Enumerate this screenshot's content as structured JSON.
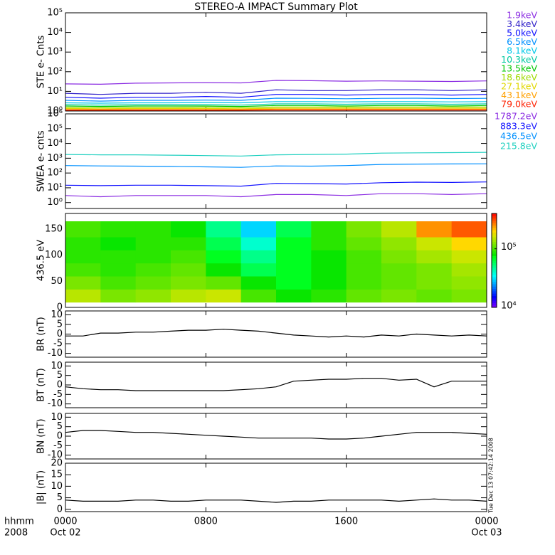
{
  "chart_data": [
    {
      "type": "line",
      "title": "STEREO-A IMPACT Summary Plot",
      "ylabel": "STE e- Cnts",
      "log": true,
      "xlim": [
        0,
        24
      ],
      "ylim": [
        1,
        100000
      ],
      "yticks": [
        {
          "value": 1,
          "label": "10⁰"
        },
        {
          "value": 10,
          "label": "10¹"
        },
        {
          "value": 100,
          "label": "10²"
        },
        {
          "value": 1000,
          "label": "10³"
        },
        {
          "value": 10000,
          "label": "10⁴"
        },
        {
          "value": 100000,
          "label": "10⁵"
        }
      ],
      "x": [
        0,
        2,
        4,
        6,
        8,
        10,
        12,
        14,
        16,
        18,
        20,
        22,
        24
      ],
      "series": [
        {
          "name": "1.9keV",
          "color": "#8a2be2",
          "values": [
            24,
            23,
            26,
            27,
            28,
            27,
            36,
            35,
            33,
            34,
            33,
            32,
            34
          ]
        },
        {
          "name": "3.4keV",
          "color": "#3020c8",
          "values": [
            8,
            7,
            8,
            8,
            9,
            8,
            12,
            11,
            11,
            12,
            12,
            11,
            12
          ]
        },
        {
          "name": "5.0keV",
          "color": "#1010ff",
          "values": [
            5,
            4.5,
            5,
            5,
            5.5,
            5,
            7,
            7,
            6.5,
            7,
            7,
            6.5,
            7
          ]
        },
        {
          "name": "6.5keV",
          "color": "#0090ff",
          "values": [
            3.5,
            3.2,
            3.5,
            3.5,
            3.6,
            3.5,
            4.5,
            4.4,
            4.2,
            4.4,
            4.5,
            4.3,
            4.4
          ]
        },
        {
          "name": "8.1keV",
          "color": "#00c8e8",
          "values": [
            2.6,
            2.5,
            2.6,
            2.6,
            2.7,
            2.6,
            3,
            3,
            2.9,
            3,
            3,
            2.9,
            3
          ]
        },
        {
          "name": "10.3keV",
          "color": "#00c8a0",
          "values": [
            2.1,
            2,
            2.1,
            2.1,
            2.1,
            2,
            2.3,
            2.3,
            2.2,
            2.3,
            2.3,
            2.2,
            2.3
          ]
        },
        {
          "name": "13.5keV",
          "color": "#00c800",
          "values": [
            1.8,
            1.7,
            1.8,
            1.8,
            1.8,
            1.7,
            1.9,
            1.9,
            1.8,
            1.9,
            1.9,
            1.8,
            1.9
          ]
        },
        {
          "name": "18.6keV",
          "color": "#a0dc00",
          "values": [
            1.5,
            1.5,
            1.5,
            1.5,
            1.6,
            1.5,
            1.6,
            1.6,
            1.6,
            1.6,
            1.6,
            1.6,
            1.6
          ]
        },
        {
          "name": "27.1keV",
          "color": "#e0d800",
          "values": [
            1.35,
            1.3,
            1.35,
            1.35,
            1.35,
            1.3,
            1.4,
            1.4,
            1.4,
            1.4,
            1.4,
            1.4,
            1.4
          ]
        },
        {
          "name": "43.1keV",
          "color": "#ffa000",
          "values": [
            1.2,
            1.2,
            1.2,
            1.2,
            1.2,
            1.2,
            1.25,
            1.25,
            1.25,
            1.25,
            1.25,
            1.25,
            1.25
          ]
        },
        {
          "name": "79.0keV",
          "color": "#ff2000",
          "values": [
            1.1,
            1.1,
            1.1,
            1.1,
            1.1,
            1.1,
            1.12,
            1.12,
            1.12,
            1.12,
            1.12,
            1.12,
            1.12
          ]
        }
      ]
    },
    {
      "type": "line",
      "ylabel": "SWEA e- cnts",
      "log": true,
      "xlim": [
        0,
        24
      ],
      "ylim": [
        0.4,
        1000000
      ],
      "yticks": [
        {
          "value": 1,
          "label": "10⁰"
        },
        {
          "value": 10,
          "label": "10¹"
        },
        {
          "value": 100,
          "label": "10²"
        },
        {
          "value": 1000,
          "label": "10³"
        },
        {
          "value": 10000,
          "label": "10⁴"
        },
        {
          "value": 100000,
          "label": "10⁵"
        },
        {
          "value": 1000000,
          "label": "10⁶"
        }
      ],
      "x": [
        0,
        2,
        4,
        6,
        8,
        10,
        12,
        14,
        16,
        18,
        20,
        22,
        24
      ],
      "series": [
        {
          "name": "1787.2eV",
          "color": "#8a2be2",
          "values": [
            3,
            2.5,
            3,
            3,
            3,
            2.5,
            3.5,
            3.5,
            3,
            4,
            4,
            3.5,
            4
          ]
        },
        {
          "name": "883.3eV",
          "color": "#1010ff",
          "values": [
            15,
            14,
            15,
            15,
            14,
            13,
            20,
            19,
            18,
            22,
            24,
            23,
            25
          ]
        },
        {
          "name": "436.5eV",
          "color": "#0090ff",
          "values": [
            320,
            300,
            290,
            280,
            260,
            240,
            300,
            290,
            320,
            380,
            400,
            410,
            420
          ]
        },
        {
          "name": "215.8eV",
          "color": "#20d0c0",
          "values": [
            1800,
            1700,
            1700,
            1600,
            1500,
            1400,
            1700,
            1800,
            1900,
            2200,
            2300,
            2400,
            2500
          ]
        }
      ]
    },
    {
      "type": "heatmap",
      "ylabel": "436.5 eV",
      "xlim": [
        0,
        24
      ],
      "ylim": [
        0,
        180
      ],
      "yticks": [
        0,
        50,
        100,
        150
      ],
      "xbins": [
        0,
        2,
        4,
        6,
        8,
        10,
        12,
        14,
        16,
        18,
        20,
        22,
        24
      ],
      "ybins": [
        10,
        35,
        60,
        85,
        110,
        135,
        165
      ],
      "z": [
        [
          150000,
          120000,
          130000,
          150000,
          160000,
          100000,
          80000,
          90000,
          110000,
          120000,
          110000,
          120000
        ],
        [
          120000,
          100000,
          110000,
          120000,
          110000,
          80000,
          70000,
          80000,
          100000,
          110000,
          120000,
          130000
        ],
        [
          100000,
          90000,
          100000,
          110000,
          80000,
          60000,
          70000,
          80000,
          100000,
          110000,
          120000,
          140000
        ],
        [
          90000,
          90000,
          90000,
          100000,
          70000,
          50000,
          70000,
          80000,
          100000,
          120000,
          140000,
          160000
        ],
        [
          90000,
          80000,
          90000,
          90000,
          60000,
          40000,
          70000,
          90000,
          110000,
          130000,
          160000,
          200000
        ],
        [
          100000,
          90000,
          90000,
          80000,
          50000,
          30000,
          60000,
          90000,
          120000,
          150000,
          250000,
          300000
        ]
      ],
      "zlim": [
        10000,
        400000
      ],
      "zticks": [
        {
          "value": 10000,
          "label": "10⁴"
        },
        {
          "value": 100000,
          "label": "10⁵"
        }
      ]
    },
    {
      "type": "line",
      "ylabel": "BR (nT)",
      "xlim": [
        0,
        24
      ],
      "ylim": [
        -12,
        12
      ],
      "yticks": [
        -10,
        -5,
        0,
        5,
        10
      ],
      "x": [
        0,
        1,
        2,
        3,
        4,
        5,
        6,
        7,
        8,
        9,
        10,
        11,
        12,
        13,
        14,
        15,
        16,
        17,
        18,
        19,
        20,
        21,
        22,
        23,
        24
      ],
      "series": [
        {
          "color": "#000000",
          "values": [
            -1,
            -1,
            0.5,
            0.5,
            1,
            1,
            1.5,
            2,
            2,
            2.5,
            2,
            1.5,
            0.5,
            -0.5,
            -1,
            -1.5,
            -1,
            -1.5,
            -0.5,
            -1,
            0,
            -0.5,
            -1,
            -0.5,
            -1
          ]
        }
      ]
    },
    {
      "type": "line",
      "ylabel": "BT (nT)",
      "xlim": [
        0,
        24
      ],
      "ylim": [
        -12,
        12
      ],
      "yticks": [
        -10,
        -5,
        0,
        5,
        10
      ],
      "x": [
        0,
        1,
        2,
        3,
        4,
        5,
        6,
        7,
        8,
        9,
        10,
        11,
        12,
        13,
        14,
        15,
        16,
        17,
        18,
        19,
        20,
        21,
        22,
        23,
        24
      ],
      "series": [
        {
          "color": "#000000",
          "values": [
            -1,
            -2,
            -2.5,
            -2.5,
            -3,
            -3,
            -3,
            -3,
            -3,
            -3,
            -2.5,
            -2,
            -1,
            2,
            2.5,
            3,
            3,
            3.5,
            3.5,
            2.5,
            3,
            -1,
            2,
            2,
            2
          ]
        }
      ]
    },
    {
      "type": "line",
      "ylabel": "BN (nT)",
      "xlim": [
        0,
        24
      ],
      "ylim": [
        -12,
        12
      ],
      "yticks": [
        -10,
        -5,
        0,
        5,
        10
      ],
      "x": [
        0,
        1,
        2,
        3,
        4,
        5,
        6,
        7,
        8,
        9,
        10,
        11,
        12,
        13,
        14,
        15,
        16,
        17,
        18,
        19,
        20,
        21,
        22,
        23,
        24
      ],
      "series": [
        {
          "color": "#000000",
          "values": [
            2,
            3,
            3,
            2.5,
            2,
            2,
            1.5,
            1,
            0.5,
            0,
            -0.5,
            -1,
            -1,
            -1,
            -1,
            -1.5,
            -1.5,
            -1,
            0,
            1,
            2,
            2,
            2,
            1.5,
            1
          ]
        }
      ]
    },
    {
      "type": "line",
      "ylabel": "|B| (nT)",
      "xlim": [
        0,
        24
      ],
      "ylim": [
        -1,
        20
      ],
      "yticks": [
        0,
        5,
        10,
        15,
        20
      ],
      "x": [
        0,
        1,
        2,
        3,
        4,
        5,
        6,
        7,
        8,
        9,
        10,
        11,
        12,
        13,
        14,
        15,
        16,
        17,
        18,
        19,
        20,
        21,
        22,
        23,
        24
      ],
      "series": [
        {
          "color": "#000000",
          "values": [
            4,
            3.5,
            3.5,
            3.5,
            4,
            4,
            3.5,
            3.5,
            4,
            4,
            4,
            3.5,
            3,
            3.5,
            3.5,
            4,
            4,
            4,
            4,
            3.5,
            4,
            4.5,
            4,
            4,
            3.5
          ]
        }
      ],
      "xticks": [
        {
          "value": 0,
          "label": "0000"
        },
        {
          "value": 8,
          "label": "0800"
        },
        {
          "value": 16,
          "label": "1600"
        },
        {
          "value": 24,
          "label": "0000"
        }
      ],
      "xdates": [
        {
          "value": 0,
          "label": "Oct 02"
        },
        {
          "value": 24,
          "label": "Oct 03"
        }
      ],
      "xlabel": "hhmm",
      "year_label": "2008",
      "annotation": "Tue Dec 13 07:42:14 2008"
    }
  ]
}
